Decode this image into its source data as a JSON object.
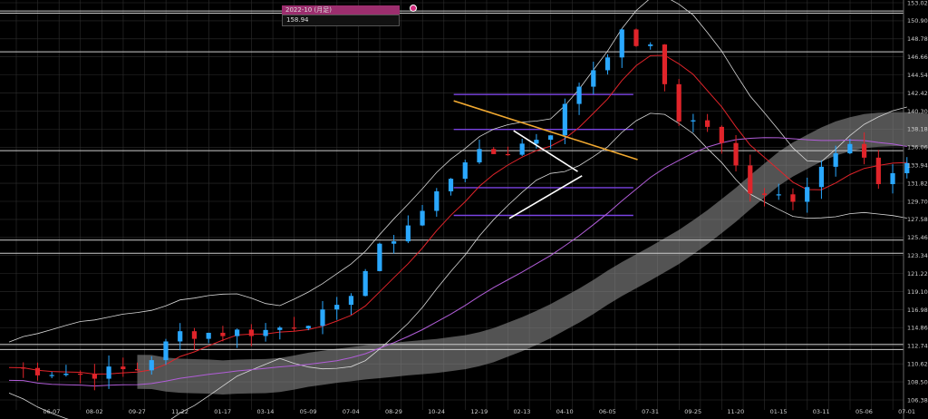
{
  "tooltip": {
    "period": "2022-10 (月足)",
    "price": "158.94"
  },
  "colors": {
    "up": "#2aa8ff",
    "down": "#e0242a",
    "bg": "#000000",
    "grid": "#2e2e2e",
    "ma_red": "#e0242a",
    "ma_purple": "#b15dd8",
    "bands": "#d8d8d8",
    "cloud": "#8a8a8a",
    "level": "#cccccc",
    "fib": "#7b43e3",
    "trend_orange": "#f0a830",
    "trend_white": "#ffffff"
  },
  "chart_data": {
    "type": "line",
    "title": "",
    "xlabel": "",
    "ylabel": "",
    "ylim": [
      106.38,
      153.02
    ],
    "grid": true,
    "y_ticks": [
      "153.02",
      "150.90",
      "148.78",
      "146.66",
      "144.54",
      "142.42",
      "140.30",
      "138.18",
      "136.06",
      "133.94",
      "131.82",
      "129.70",
      "127.58",
      "125.46",
      "123.34",
      "121.22",
      "119.10",
      "116.98",
      "114.86",
      "112.74",
      "110.62",
      "108.50",
      "106.38"
    ],
    "x_ticks": [
      "06-07",
      "08-02",
      "09-27",
      "11-22",
      "01-17",
      "03-14",
      "05-09",
      "07-04",
      "08-29",
      "10-24",
      "12-19",
      "02-13",
      "04-10",
      "06-05",
      "07-31",
      "09-25",
      "11-20",
      "01-15",
      "03-11",
      "05-06",
      "07-01"
    ],
    "candles_n": 63,
    "horizontal_levels": [
      152.05,
      151.8,
      147.25,
      135.65,
      125.15,
      123.6,
      112.9,
      112.3
    ],
    "fib_levels": [
      142.25,
      138.15,
      131.3,
      128.05
    ],
    "fib_range": [
      10.4,
      14.6
    ],
    "trendlines": [
      {
        "color": "orange",
        "points": [
          [
            10.4,
            141.5
          ],
          [
            14.7,
            134.6
          ]
        ]
      },
      {
        "color": "white",
        "points": [
          [
            11.8,
            138.0
          ],
          [
            13.3,
            133.2
          ]
        ]
      },
      {
        "color": "white",
        "points": [
          [
            11.7,
            127.7
          ],
          [
            13.4,
            132.7
          ]
        ]
      }
    ]
  }
}
